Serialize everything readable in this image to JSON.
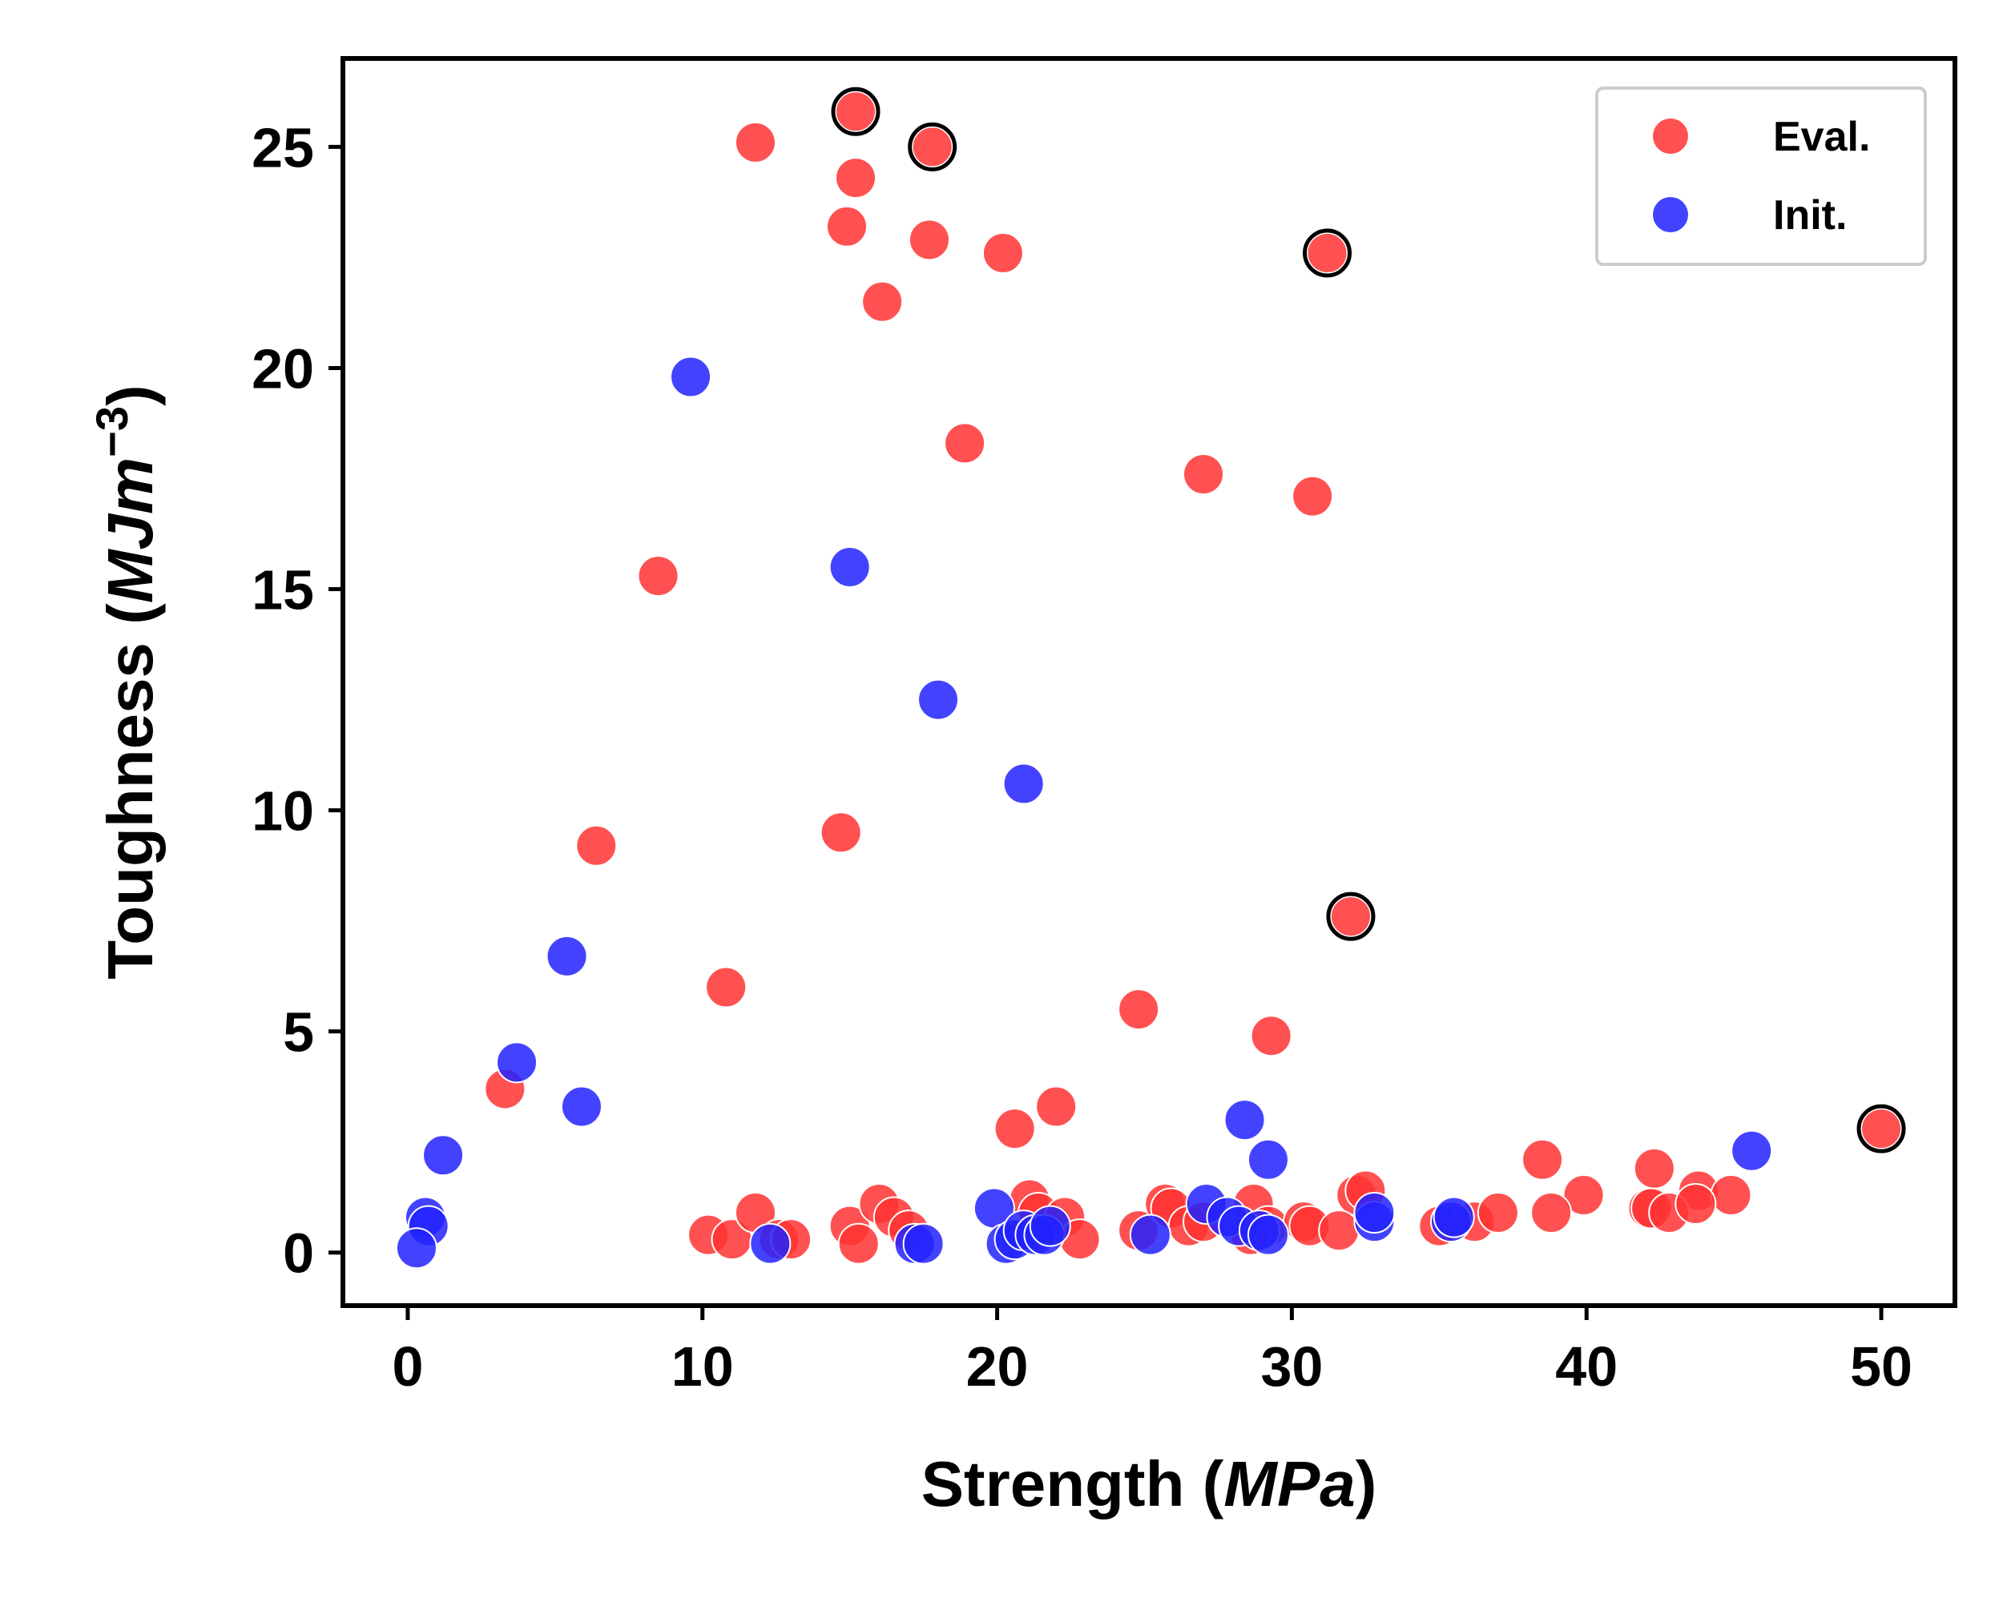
{
  "chart_data": {
    "type": "scatter",
    "xlabel": {
      "prefix": "Strength (",
      "italic": "MPa",
      "suffix": ")"
    },
    "ylabel": {
      "prefix": "Toughness (",
      "italic": "MJm",
      "sup": "−3",
      "suffix": ")"
    },
    "xlim": [
      -2.2,
      52.5
    ],
    "ylim": [
      -1.2,
      27.0
    ],
    "xticks": [
      0,
      10,
      20,
      30,
      40,
      50
    ],
    "yticks": [
      0,
      5,
      10,
      15,
      20,
      25
    ],
    "grid": false,
    "legend_position": "top-right",
    "series": [
      {
        "name": "Eval.",
        "color": "#ff3333",
        "points": [
          [
            15.2,
            25.8
          ],
          [
            17.8,
            25.0
          ],
          [
            31.2,
            22.6
          ],
          [
            32.0,
            7.6
          ],
          [
            50.0,
            2.8
          ],
          [
            11.8,
            25.1
          ],
          [
            15.2,
            24.3
          ],
          [
            14.9,
            23.2
          ],
          [
            17.7,
            22.9
          ],
          [
            20.2,
            22.6
          ],
          [
            16.1,
            21.5
          ],
          [
            18.9,
            18.3
          ],
          [
            27.0,
            17.6
          ],
          [
            30.7,
            17.1
          ],
          [
            8.5,
            15.3
          ],
          [
            6.4,
            9.2
          ],
          [
            14.7,
            9.5
          ],
          [
            10.8,
            6.0
          ],
          [
            24.8,
            5.5
          ],
          [
            29.3,
            4.9
          ],
          [
            3.3,
            3.7
          ],
          [
            22.0,
            3.3
          ],
          [
            20.6,
            2.8
          ],
          [
            38.5,
            2.1
          ],
          [
            42.3,
            1.9
          ],
          [
            39.9,
            1.3
          ],
          [
            43.8,
            1.4
          ],
          [
            44.9,
            1.3
          ],
          [
            32.2,
            1.3
          ],
          [
            32.5,
            1.4
          ],
          [
            35.0,
            0.6
          ],
          [
            36.2,
            0.7
          ],
          [
            37.0,
            0.9
          ],
          [
            38.8,
            0.9
          ],
          [
            42.1,
            1.0
          ],
          [
            42.2,
            1.0
          ],
          [
            42.8,
            0.9
          ],
          [
            43.7,
            1.1
          ],
          [
            10.2,
            0.4
          ],
          [
            11.0,
            0.3
          ],
          [
            11.8,
            0.9
          ],
          [
            12.6,
            0.3
          ],
          [
            13.0,
            0.3
          ],
          [
            15.0,
            0.6
          ],
          [
            15.3,
            0.2
          ],
          [
            16.0,
            1.1
          ],
          [
            16.5,
            0.8
          ],
          [
            17.0,
            0.5
          ],
          [
            21.1,
            1.2
          ],
          [
            21.4,
            0.9
          ],
          [
            22.3,
            0.8
          ],
          [
            22.8,
            0.3
          ],
          [
            24.8,
            0.5
          ],
          [
            25.7,
            1.1
          ],
          [
            25.9,
            1.0
          ],
          [
            26.5,
            0.6
          ],
          [
            27.0,
            0.7
          ],
          [
            28.7,
            1.1
          ],
          [
            29.2,
            0.6
          ],
          [
            28.6,
            0.4
          ],
          [
            30.4,
            0.7
          ],
          [
            30.6,
            0.6
          ],
          [
            31.6,
            0.5
          ]
        ]
      },
      {
        "name": "Init.",
        "color": "#2222ff",
        "points": [
          [
            9.6,
            19.8
          ],
          [
            15.0,
            15.5
          ],
          [
            18.0,
            12.5
          ],
          [
            20.9,
            10.6
          ],
          [
            5.4,
            6.7
          ],
          [
            3.7,
            4.3
          ],
          [
            5.9,
            3.3
          ],
          [
            1.2,
            2.2
          ],
          [
            0.6,
            0.8
          ],
          [
            0.7,
            0.6
          ],
          [
            0.3,
            0.1
          ],
          [
            12.3,
            0.2
          ],
          [
            17.2,
            0.2
          ],
          [
            17.5,
            0.2
          ],
          [
            19.9,
            1.0
          ],
          [
            20.3,
            0.2
          ],
          [
            20.6,
            0.3
          ],
          [
            20.9,
            0.5
          ],
          [
            21.3,
            0.4
          ],
          [
            21.6,
            0.4
          ],
          [
            21.8,
            0.6
          ],
          [
            25.2,
            0.4
          ],
          [
            27.1,
            1.1
          ],
          [
            27.8,
            0.8
          ],
          [
            28.2,
            0.6
          ],
          [
            28.9,
            0.5
          ],
          [
            29.2,
            0.4
          ],
          [
            28.4,
            3.0
          ],
          [
            29.2,
            2.1
          ],
          [
            32.8,
            0.7
          ],
          [
            32.8,
            0.9
          ],
          [
            35.4,
            0.7
          ],
          [
            35.5,
            0.8
          ],
          [
            45.6,
            2.3
          ]
        ]
      }
    ],
    "highlighted": [
      [
        15.2,
        25.8
      ],
      [
        17.8,
        25.0
      ],
      [
        31.2,
        22.6
      ],
      [
        32.0,
        7.6
      ],
      [
        50.0,
        2.8
      ]
    ]
  }
}
